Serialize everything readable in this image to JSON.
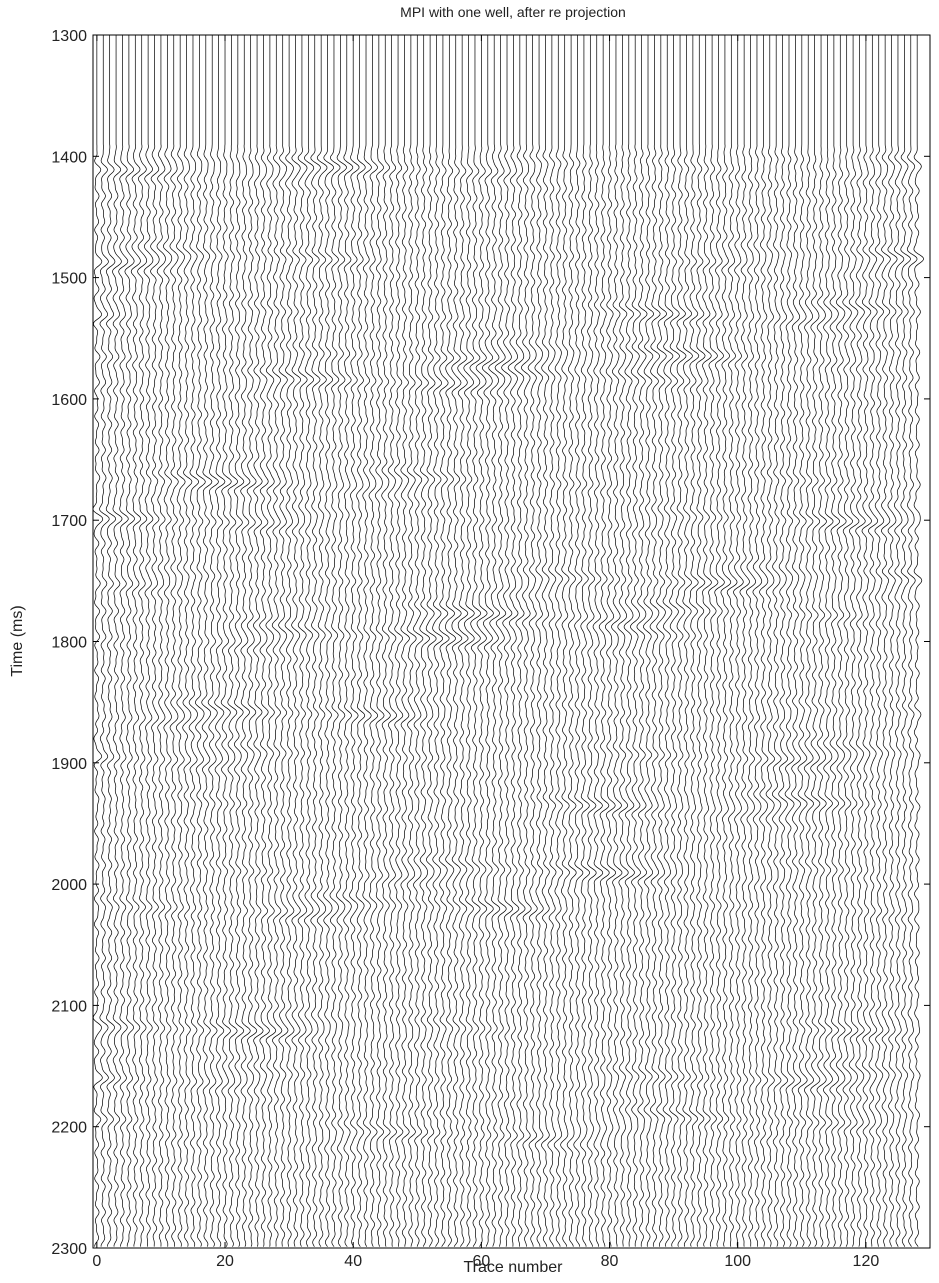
{
  "chart_data": {
    "type": "seismic-wiggle",
    "title": "MPI with one well, after re   projection",
    "xlabel": "Trace number",
    "ylabel": "Time (ms)",
    "xlim": [
      -0.6,
      130
    ],
    "ylim": [
      2300,
      1300
    ],
    "xticks": [
      0,
      20,
      40,
      60,
      80,
      100,
      120
    ],
    "yticks": [
      1300,
      1400,
      1500,
      1600,
      1700,
      1800,
      1900,
      2000,
      2100,
      2200,
      2300
    ],
    "x": [
      0,
      1,
      2,
      3,
      4,
      5,
      6,
      7,
      8,
      9,
      10,
      11,
      12,
      13,
      14,
      15,
      16,
      17,
      18,
      19,
      20,
      21,
      22,
      23,
      24,
      25,
      26,
      27,
      28,
      29,
      30,
      31,
      32,
      33,
      34,
      35,
      36,
      37,
      38,
      39,
      40,
      41,
      42,
      43,
      44,
      45,
      46,
      47,
      48,
      49,
      50,
      51,
      52,
      53,
      54,
      55,
      56,
      57,
      58,
      59,
      60,
      61,
      62,
      63,
      64,
      65,
      66,
      67,
      68,
      69,
      70,
      71,
      72,
      73,
      74,
      75,
      76,
      77,
      78,
      79,
      80,
      81,
      82,
      83,
      84,
      85,
      86,
      87,
      88,
      89,
      90,
      91,
      92,
      93,
      94,
      95,
      96,
      97,
      98,
      99,
      100,
      101,
      102,
      103,
      104,
      105,
      106,
      107,
      108,
      109,
      110,
      111,
      112,
      113,
      114,
      115,
      116,
      117,
      118,
      119,
      120,
      121,
      122,
      123,
      124,
      125,
      126,
      127,
      128
    ],
    "signal_start": 1390,
    "events": [
      1410,
      1485,
      1530,
      1565,
      1585,
      1668,
      1700,
      1750,
      1777,
      1797,
      1860,
      1895,
      1935,
      1990,
      2020,
      2120,
      2160,
      2195,
      2205
    ],
    "color": "#000000"
  }
}
